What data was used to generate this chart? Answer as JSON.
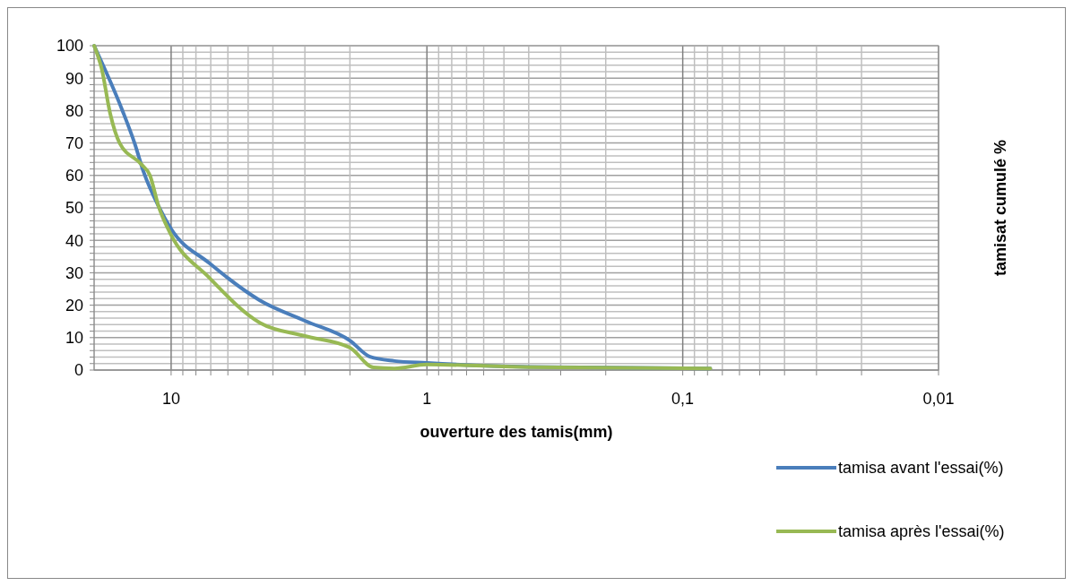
{
  "chart_data": {
    "type": "line",
    "xlabel": "ouverture des tamis(mm)",
    "ylabel": "tamisat cumulé %",
    "log": "x",
    "xlim": [
      20,
      0.01
    ],
    "xticks": [
      {
        "value": 10,
        "label": "10"
      },
      {
        "value": 9,
        "label": null
      },
      {
        "value": 8,
        "label": null
      },
      {
        "value": 7,
        "label": null
      },
      {
        "value": 6,
        "label": null
      },
      {
        "value": 5,
        "label": null
      },
      {
        "value": 4,
        "label": null
      },
      {
        "value": 3,
        "label": null
      },
      {
        "value": 2,
        "label": null
      },
      {
        "value": 1,
        "label": "1"
      },
      {
        "value": 0.9,
        "label": null
      },
      {
        "value": 0.8,
        "label": null
      },
      {
        "value": 0.7,
        "label": null
      },
      {
        "value": 0.6,
        "label": null
      },
      {
        "value": 0.5,
        "label": null
      },
      {
        "value": 0.4,
        "label": null
      },
      {
        "value": 0.3,
        "label": null
      },
      {
        "value": 0.2,
        "label": null
      },
      {
        "value": 0.1,
        "label": "0,1"
      },
      {
        "value": 0.09,
        "label": null
      },
      {
        "value": 0.08,
        "label": null
      },
      {
        "value": 0.07,
        "label": null
      },
      {
        "value": 0.06,
        "label": null
      },
      {
        "value": 0.05,
        "label": null
      },
      {
        "value": 0.04,
        "label": null
      },
      {
        "value": 0.03,
        "label": null
      },
      {
        "value": 0.02,
        "label": null
      },
      {
        "value": 0.01,
        "label": "0,01"
      }
    ],
    "ylim": [
      0,
      100
    ],
    "yticks": [
      0,
      {
        "value": 2,
        "label": null
      },
      {
        "value": 4,
        "label": null
      },
      {
        "value": 6,
        "label": null
      },
      {
        "value": 8,
        "label": null
      },
      10,
      {
        "value": 12,
        "label": null
      },
      {
        "value": 14,
        "label": null
      },
      {
        "value": 16,
        "label": null
      },
      {
        "value": 18,
        "label": null
      },
      20,
      {
        "value": 22,
        "label": null
      },
      {
        "value": 24,
        "label": null
      },
      {
        "value": 26,
        "label": null
      },
      {
        "value": 28,
        "label": null
      },
      30,
      {
        "value": 32,
        "label": null
      },
      {
        "value": 34,
        "label": null
      },
      {
        "value": 36,
        "label": null
      },
      {
        "value": 38,
        "label": null
      },
      40,
      {
        "value": 42,
        "label": null
      },
      {
        "value": 44,
        "label": null
      },
      {
        "value": 46,
        "label": null
      },
      {
        "value": 48,
        "label": null
      },
      50,
      {
        "value": 52,
        "label": null
      },
      {
        "value": 54,
        "label": null
      },
      {
        "value": 56,
        "label": null
      },
      {
        "value": 58,
        "label": null
      },
      60,
      {
        "value": 62,
        "label": null
      },
      {
        "value": 64,
        "label": null
      },
      {
        "value": 66,
        "label": null
      },
      {
        "value": 68,
        "label": null
      },
      70,
      {
        "value": 72,
        "label": null
      },
      {
        "value": 74,
        "label": null
      },
      {
        "value": 76,
        "label": null
      },
      {
        "value": 78,
        "label": null
      },
      80,
      {
        "value": 82,
        "label": null
      },
      {
        "value": 84,
        "label": null
      },
      {
        "value": 86,
        "label": null
      },
      {
        "value": 88,
        "label": null
      },
      90,
      {
        "value": 92,
        "label": null
      },
      {
        "value": 94,
        "label": null
      },
      {
        "value": 96,
        "label": null
      },
      {
        "value": 98,
        "label": null
      },
      100
    ],
    "grid": true,
    "legend": "bottom right",
    "marker": "none",
    "line_style": "solid",
    "series": [
      {
        "name": "tamisa avant l'essai(%)",
        "color": "#4a7ebb",
        "x": [
          20,
          15.5,
          13.9,
          12.8,
          11.2,
          10,
          7.1,
          4.5,
          3,
          2,
          1.67,
          1.34,
          1,
          0.4,
          0.078
        ],
        "values": [
          100,
          80,
          70,
          61,
          50.5,
          43.5,
          33,
          21.5,
          15.2,
          9.1,
          4.1,
          2.8,
          2.2,
          1.0,
          0.5
        ]
      },
      {
        "name": "tamisa après l'essai(%)",
        "color": "#98b954",
        "x": [
          20,
          18.7,
          17.3,
          15.9,
          13.1,
          12.1,
          11.2,
          10.1,
          7.1,
          4.5,
          3,
          2,
          1.62,
          1.34,
          1,
          0.4,
          0.078
        ],
        "values": [
          100,
          93,
          79,
          70,
          63.5,
          60,
          50.5,
          42.3,
          28.5,
          14.6,
          10.5,
          6.9,
          0.8,
          0.5,
          1.7,
          0.9,
          0.5
        ]
      }
    ]
  }
}
